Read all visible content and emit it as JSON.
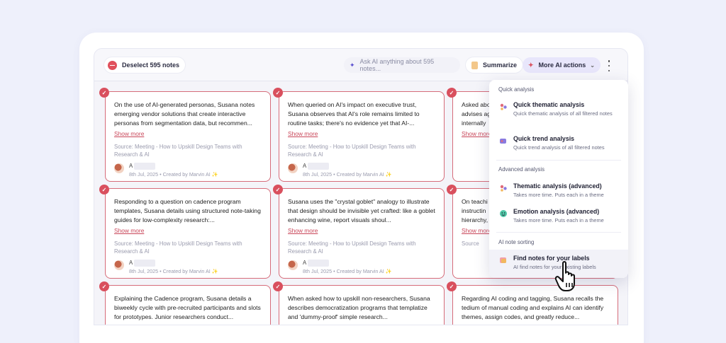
{
  "toolbar": {
    "deselect_label": "Deselect 595 notes",
    "ask_placeholder": "Ask AI anything about 595 notes...",
    "summarize_label": "Summarize",
    "more_ai_label": "More AI actions"
  },
  "cards": [
    {
      "text": "On the use of AI-generated personas, Susana notes emerging vendor solutions that create interactive personas from segmentation data, but recommen...",
      "show_more": "Show more",
      "source": "Source: Meeting - How to Upskill Design Teams with Research & AI",
      "author": "A",
      "meta": "8th Jul, 2025 • Created by Marvin AI ✨"
    },
    {
      "text": "When queried on AI's impact on executive trust, Susana observes that AI's role remains limited to routine tasks; there's no evidence yet that AI-...",
      "show_more": "Show more",
      "source": "Source: Meeting - How to Upskill Design Teams with Research & AI",
      "author": "A",
      "meta": "8th Jul, 2025 • Created by Marvin AI ✨"
    },
    {
      "text": "Asked abo advises ag internally",
      "show_more": "Show more",
      "source": "",
      "author": "",
      "meta": ""
    },
    {
      "text": "Responding to a question on cadence program templates, Susana details using structured note-taking guides for low-complexity research:...",
      "show_more": "Show more",
      "source": "Source: Meeting - How to Upskill Design Teams with Research & AI",
      "author": "A",
      "meta": "8th Jul, 2025 • Created by Marvin AI ✨"
    },
    {
      "text": "Susana uses the \"crystal goblet\" analogy to illustrate that design should be invisible yet crafted: like a goblet enhancing wine, report visuals shoul...",
      "show_more": "Show more",
      "source": "Source: Meeting - How to Upskill Design Teams with Research & AI",
      "author": "A",
      "meta": "8th Jul, 2025 • Created by Marvin AI ✨"
    },
    {
      "text": "On teachi instructin hierarchy,",
      "show_more": "Show more",
      "source": "Source",
      "author": "",
      "meta": ""
    },
    {
      "text": "Explaining the Cadence program, Susana details a biweekly cycle with pre-recruited participants and slots for prototypes. Junior researchers conduct...",
      "show_more": "",
      "source": "",
      "author": "",
      "meta": ""
    },
    {
      "text": "When asked how to upskill non-researchers, Susana describes democratization programs that templatize and 'dummy-proof' simple research...",
      "show_more": "",
      "source": "",
      "author": "",
      "meta": ""
    },
    {
      "text": "Regarding AI coding and tagging, Susana recalls the tedium of manual coding and explains AI can identify themes, assign codes, and greatly reduce...",
      "show_more": "",
      "source": "",
      "author": "",
      "meta": ""
    }
  ],
  "dropdown": {
    "sections": [
      "Quick analysis",
      "Advanced analysis",
      "AI note sorting"
    ],
    "items": [
      {
        "title": "Quick thematic analysis",
        "desc": "Quick thematic analysis of all filtered notes",
        "icon": "thematic-icon"
      },
      {
        "title": "Quick trend analysis",
        "desc": "Quick trend analysis of all filtered notes",
        "icon": "trend-icon"
      },
      {
        "title": "Thematic analysis (advanced)",
        "desc": "Takes more time. Puts each in a theme",
        "icon": "thematic-advanced-icon"
      },
      {
        "title": "Emotion analysis (advanced)",
        "desc": "Takes more time. Puts each in a theme",
        "icon": "emotion-icon"
      },
      {
        "title": "Find notes for your labels",
        "desc": "AI find notes for your existing labels",
        "icon": "labels-icon"
      }
    ]
  },
  "colors": {
    "accent": "#d9505e",
    "card_border": "#d66c7a",
    "menu_highlight": "#e8e6fb"
  }
}
